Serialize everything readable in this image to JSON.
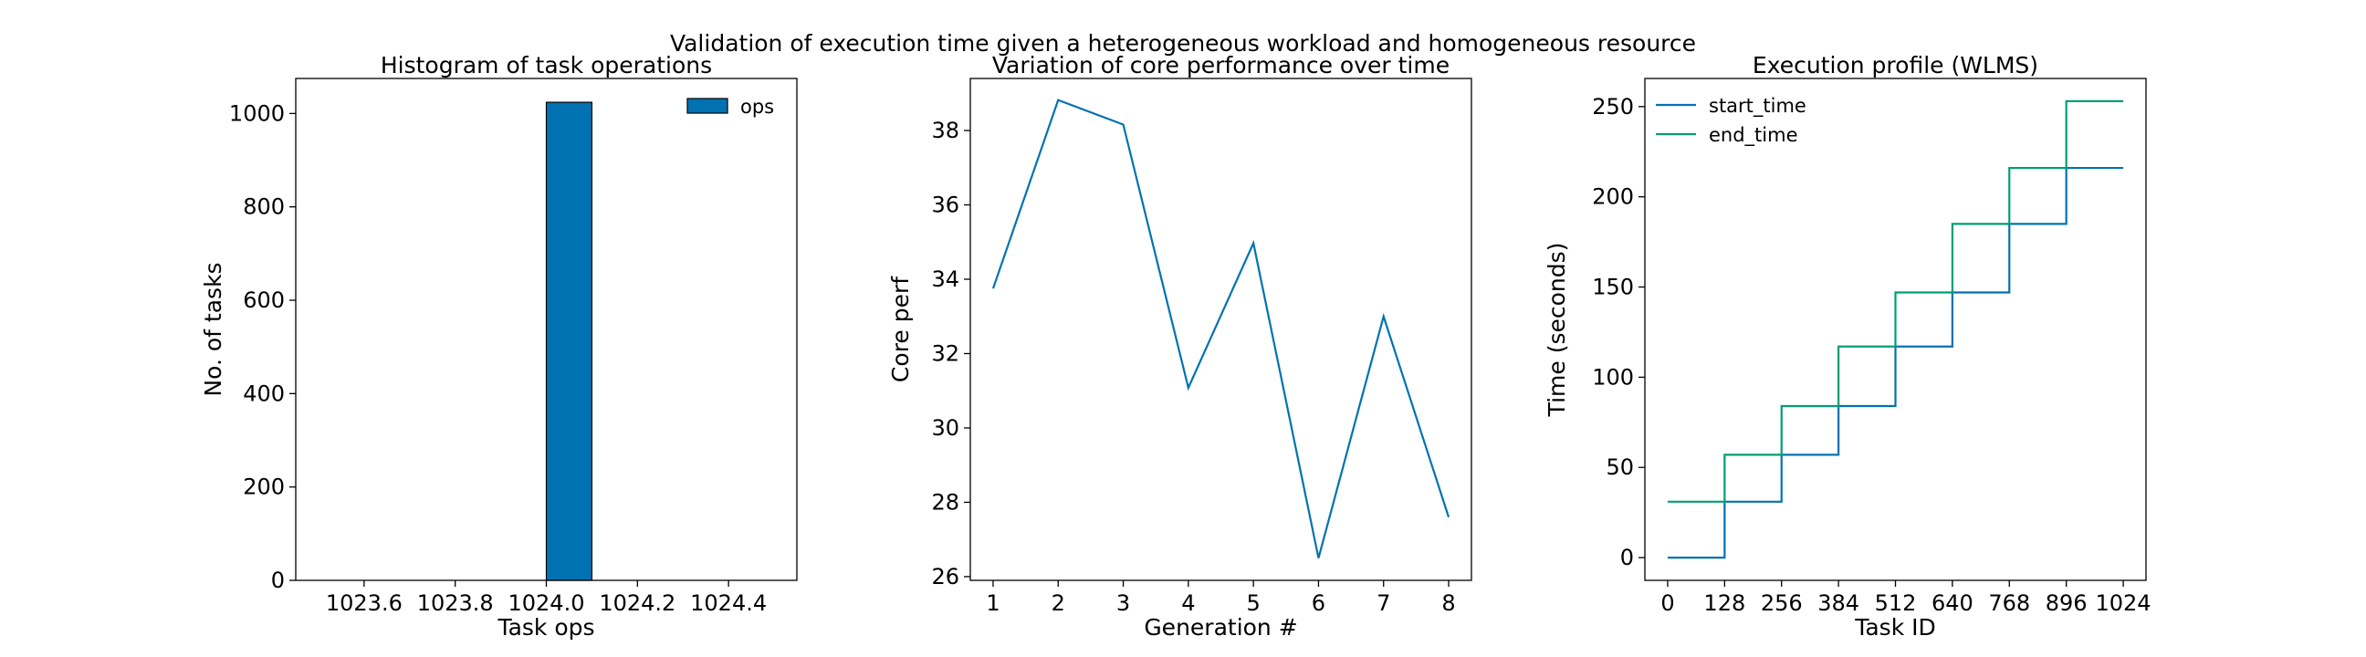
{
  "figure": {
    "suptitle": "Validation of execution time given a heterogeneous workload and homogeneous resource"
  },
  "colors": {
    "bar_fill": "#0072b2",
    "bar_edge": "#000000",
    "line_blue": "#0072b2",
    "line_green": "#009e73",
    "axes": "#000000"
  },
  "chart_data": [
    {
      "type": "bar",
      "title": "Histogram of task operations",
      "xlabel": "Task ops",
      "ylabel": "No. of tasks",
      "xlim": [
        1023.45,
        1024.55
      ],
      "ylim": [
        0,
        1075
      ],
      "xticks": [
        1023.6,
        1023.8,
        1024.0,
        1024.2,
        1024.4
      ],
      "xtick_labels": [
        "1023.6",
        "1023.8",
        "1024.0",
        "1024.2",
        "1024.4"
      ],
      "yticks": [
        0,
        200,
        400,
        600,
        800,
        1000
      ],
      "ytick_labels": [
        "0",
        "200",
        "400",
        "600",
        "800",
        "1000"
      ],
      "bars": [
        {
          "x_start": 1024.0,
          "x_end": 1024.1,
          "value": 1024
        }
      ],
      "legend": {
        "position": "upper right",
        "entries": [
          {
            "label": "ops",
            "kind": "patch"
          }
        ]
      },
      "grid": false
    },
    {
      "type": "line",
      "title": "Variation of core performance over time",
      "xlabel": "Generation #",
      "ylabel": "Core perf",
      "xlim": [
        0.65,
        8.35
      ],
      "ylim": [
        25.9,
        39.4
      ],
      "xticks": [
        1,
        2,
        3,
        4,
        5,
        6,
        7,
        8
      ],
      "xtick_labels": [
        "1",
        "2",
        "3",
        "4",
        "5",
        "6",
        "7",
        "8"
      ],
      "yticks": [
        26,
        28,
        30,
        32,
        34,
        36,
        38
      ],
      "ytick_labels": [
        "26",
        "28",
        "30",
        "32",
        "34",
        "36",
        "38"
      ],
      "series": [
        {
          "x": [
            1,
            2,
            3,
            4,
            5,
            6,
            7,
            8
          ],
          "y": [
            33.75,
            38.82,
            38.16,
            31.08,
            34.97,
            26.5,
            33.0,
            27.6
          ]
        }
      ],
      "grid": false
    },
    {
      "type": "line",
      "title": "Execution profile (WLMS)",
      "xlabel": "Task ID",
      "ylabel": "Time (seconds)",
      "xlim": [
        -51.2,
        1075.2
      ],
      "ylim": [
        -12.6,
        265.6
      ],
      "xticks": [
        0,
        128,
        256,
        384,
        512,
        640,
        768,
        896,
        1024
      ],
      "xtick_labels": [
        "0",
        "128",
        "256",
        "384",
        "512",
        "640",
        "768",
        "896",
        "1024"
      ],
      "yticks": [
        0,
        50,
        100,
        150,
        200,
        250
      ],
      "ytick_labels": [
        "0",
        "50",
        "100",
        "150",
        "200",
        "250"
      ],
      "step_where": "post",
      "series": [
        {
          "name": "start_time",
          "x": [
            0,
            128,
            256,
            384,
            512,
            640,
            768,
            896,
            1024
          ],
          "y": [
            0,
            31,
            57,
            84,
            117,
            147,
            185,
            216,
            216
          ]
        },
        {
          "name": "end_time",
          "x": [
            0,
            128,
            256,
            384,
            512,
            640,
            768,
            896,
            1024
          ],
          "y": [
            31,
            57,
            84,
            117,
            147,
            185,
            216,
            253,
            253
          ]
        }
      ],
      "legend": {
        "position": "upper left"
      },
      "grid": false
    }
  ]
}
